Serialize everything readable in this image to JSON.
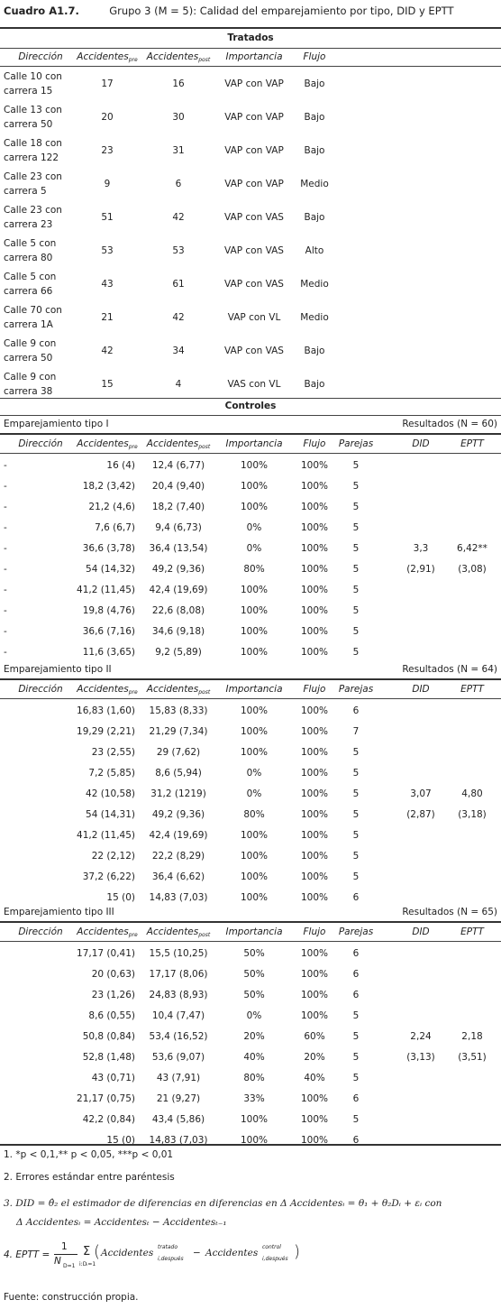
{
  "title": {
    "label": "Cuadro A1.7.",
    "text": "Grupo 3 (M = 5): Calidad del emparejamiento por tipo, DID y EPTT"
  },
  "treated": {
    "section_title": "Tratados",
    "headers": {
      "direccion": "Dirección",
      "acc_pre": "Accidentes",
      "acc_pre_sub": "pre",
      "acc_post": "Accidentes",
      "acc_post_sub": "post",
      "importancia": "Importancia",
      "flujo": "Flujo"
    },
    "rows": [
      {
        "dir1": "Calle 10 con",
        "dir2": "carrera 15",
        "pre": "17",
        "post": "16",
        "imp": "VAP con VAP",
        "flujo": "Bajo"
      },
      {
        "dir1": "Calle 13 con",
        "dir2": "carrera 50",
        "pre": "20",
        "post": "30",
        "imp": "VAP con VAP",
        "flujo": "Bajo"
      },
      {
        "dir1": "Calle 18 con",
        "dir2": "carrera 122",
        "pre": "23",
        "post": "31",
        "imp": "VAP con VAP",
        "flujo": "Bajo"
      },
      {
        "dir1": "Calle 23 con",
        "dir2": "carrera 5",
        "pre": "9",
        "post": "6",
        "imp": "VAP con VAP",
        "flujo": "Medio"
      },
      {
        "dir1": "Calle 23 con",
        "dir2": "carrera 23",
        "pre": "51",
        "post": "42",
        "imp": "VAP con VAS",
        "flujo": "Bajo"
      },
      {
        "dir1": "Calle 5 con",
        "dir2": "carrera 80",
        "pre": "53",
        "post": "53",
        "imp": "VAP con VAS",
        "flujo": "Alto"
      },
      {
        "dir1": "Calle 5 con",
        "dir2": "carrera 66",
        "pre": "43",
        "post": "61",
        "imp": "VAP con VAS",
        "flujo": "Medio"
      },
      {
        "dir1": "Calle 70 con",
        "dir2": "carrera 1A",
        "pre": "21",
        "post": "42",
        "imp": "VAP con VL",
        "flujo": "Medio"
      },
      {
        "dir1": "Calle 9 con",
        "dir2": "carrera 50",
        "pre": "42",
        "post": "34",
        "imp": "VAP con VAS",
        "flujo": "Bajo"
      },
      {
        "dir1": "Calle 9 con",
        "dir2": "carrera 38",
        "pre": "15",
        "post": "4",
        "imp": "VAS con VL",
        "flujo": "Bajo"
      }
    ]
  },
  "controls": {
    "section_title": "Controles",
    "headers": {
      "direccion": "Dirección",
      "acc_pre": "Accidentes",
      "acc_pre_sub": "pre",
      "acc_post": "Accidentes",
      "acc_post_sub": "post",
      "importancia": "Importancia",
      "flujo": "Flujo",
      "parejas": "Parejas",
      "did": "DID",
      "eptt": "EPTT"
    },
    "groups": [
      {
        "label": "Emparejamiento tipo I",
        "results": "Resultados (N = 60)",
        "did": "3,3",
        "did_se": "(2,91)",
        "eptt": "6,42**",
        "eptt_se": "(3,08)",
        "rows": [
          {
            "dir": "-",
            "pre": "16 (4)",
            "post": "12,4 (6,77)",
            "imp": "100%",
            "flujo": "100%",
            "par": "5"
          },
          {
            "dir": "-",
            "pre": "18,2 (3,42)",
            "post": "20,4 (9,40)",
            "imp": "100%",
            "flujo": "100%",
            "par": "5"
          },
          {
            "dir": "-",
            "pre": "21,2 (4,6)",
            "post": "18,2 (7,40)",
            "imp": "100%",
            "flujo": "100%",
            "par": "5"
          },
          {
            "dir": "-",
            "pre": "7,6 (6,7)",
            "post": "9,4 (6,73)",
            "imp": "0%",
            "flujo": "100%",
            "par": "5"
          },
          {
            "dir": "-",
            "pre": "36,6 (3,78)",
            "post": "36,4 (13,54)",
            "imp": "0%",
            "flujo": "100%",
            "par": "5"
          },
          {
            "dir": "-",
            "pre": "54 (14,32)",
            "post": "49,2 (9,36)",
            "imp": "80%",
            "flujo": "100%",
            "par": "5"
          },
          {
            "dir": "-",
            "pre": "41,2 (11,45)",
            "post": "42,4 (19,69)",
            "imp": "100%",
            "flujo": "100%",
            "par": "5"
          },
          {
            "dir": "-",
            "pre": "19,8 (4,76)",
            "post": "22,6 (8,08)",
            "imp": "100%",
            "flujo": "100%",
            "par": "5"
          },
          {
            "dir": "-",
            "pre": "36,6 (7,16)",
            "post": "34,6 (9,18)",
            "imp": "100%",
            "flujo": "100%",
            "par": "5"
          },
          {
            "dir": "-",
            "pre": "11,6 (3,65)",
            "post": "9,2 (5,89)",
            "imp": "100%",
            "flujo": "100%",
            "par": "5"
          }
        ]
      },
      {
        "label": "Emparejamiento tipo II",
        "results": "Resultados (N = 64)",
        "did": "3,07",
        "did_se": "(2,87)",
        "eptt": "4,80",
        "eptt_se": "(3,18)",
        "rows": [
          {
            "dir": "",
            "pre": "16,83 (1,60)",
            "post": "15,83 (8,33)",
            "imp": "100%",
            "flujo": "100%",
            "par": "6"
          },
          {
            "dir": "",
            "pre": "19,29 (2,21)",
            "post": "21,29 (7,34)",
            "imp": "100%",
            "flujo": "100%",
            "par": "7"
          },
          {
            "dir": "",
            "pre": "23 (2,55)",
            "post": "29 (7,62)",
            "imp": "100%",
            "flujo": "100%",
            "par": "5"
          },
          {
            "dir": "",
            "pre": "7,2 (5,85)",
            "post": "8,6 (5,94)",
            "imp": "0%",
            "flujo": "100%",
            "par": "5"
          },
          {
            "dir": "",
            "pre": "42 (10,58)",
            "post": "31,2 (1219)",
            "imp": "0%",
            "flujo": "100%",
            "par": "5"
          },
          {
            "dir": "",
            "pre": "54 (14,31)",
            "post": "49,2 (9,36)",
            "imp": "80%",
            "flujo": "100%",
            "par": "5"
          },
          {
            "dir": "",
            "pre": "41,2 (11,45)",
            "post": "42,4 (19,69)",
            "imp": "100%",
            "flujo": "100%",
            "par": "5"
          },
          {
            "dir": "",
            "pre": "22 (2,12)",
            "post": "22,2 (8,29)",
            "imp": "100%",
            "flujo": "100%",
            "par": "5"
          },
          {
            "dir": "",
            "pre": "37,2 (6,22)",
            "post": "36,4 (6,62)",
            "imp": "100%",
            "flujo": "100%",
            "par": "5"
          },
          {
            "dir": "",
            "pre": "15 (0)",
            "post": "14,83 (7,03)",
            "imp": "100%",
            "flujo": "100%",
            "par": "6"
          }
        ]
      },
      {
        "label": "Emparejamiento tipo III",
        "results": "Resultados (N = 65)",
        "did": "2,24",
        "did_se": "(3,13)",
        "eptt": "2,18",
        "eptt_se": "(3,51)",
        "rows": [
          {
            "dir": "",
            "pre": "17,17 (0,41)",
            "post": "15,5 (10,25)",
            "imp": "50%",
            "flujo": "100%",
            "par": "6"
          },
          {
            "dir": "",
            "pre": "20 (0,63)",
            "post": "17,17 (8,06)",
            "imp": "50%",
            "flujo": "100%",
            "par": "6"
          },
          {
            "dir": "",
            "pre": "23 (1,26)",
            "post": "24,83 (8,93)",
            "imp": "50%",
            "flujo": "100%",
            "par": "6"
          },
          {
            "dir": "",
            "pre": "8,6 (0,55)",
            "post": "10,4 (7,47)",
            "imp": "0%",
            "flujo": "100%",
            "par": "5"
          },
          {
            "dir": "",
            "pre": "50,8 (0,84)",
            "post": "53,4 (16,52)",
            "imp": "20%",
            "flujo": "60%",
            "par": "5"
          },
          {
            "dir": "",
            "pre": "52,8 (1,48)",
            "post": "53,6 (9,07)",
            "imp": "40%",
            "flujo": "20%",
            "par": "5"
          },
          {
            "dir": "",
            "pre": "43 (0,71)",
            "post": "43 (7,91)",
            "imp": "80%",
            "flujo": "40%",
            "par": "5"
          },
          {
            "dir": "",
            "pre": "21,17 (0,75)",
            "post": "21 (9,27)",
            "imp": "33%",
            "flujo": "100%",
            "par": "6"
          },
          {
            "dir": "",
            "pre": "42,2 (0,84)",
            "post": "43,4 (5,86)",
            "imp": "100%",
            "flujo": "100%",
            "par": "5"
          },
          {
            "dir": "",
            "pre": "15 (0)",
            "post": "14,83 (7,03)",
            "imp": "100%",
            "flujo": "100%",
            "par": "6"
          }
        ]
      }
    ]
  },
  "notes": {
    "n1": "1. *p < 0,1,** p < 0,05, ***p < 0,01",
    "n2": "2. Errores estándar entre paréntesis",
    "n3_a": "3. DID = θ̂₂ el estimador de diferencias en diferencias en Δ Accidentesᵢ = θ₁ + θ₂Dᵢ + εᵢ con",
    "n3_b": "Δ Accidentesᵢ = Accidentesₜ − Accidentesₜ₋₁",
    "n4_prefix": "4. EPTT =",
    "n4_frac_num": "1",
    "n4_frac_den": "N",
    "n4_frac_den_sub": "D=1",
    "n4_sum": "Σ",
    "n4_sum_sub": "i:Dᵢ=1",
    "n4_term1": "Accidentes",
    "n4_term1_sup": "tratado",
    "n4_term1_sub": "i,después",
    "n4_minus": "−",
    "n4_term2": "Accidentes",
    "n4_term2_sup": "control",
    "n4_term2_sub": "i,después",
    "source": "Fuente: construcción propia."
  }
}
